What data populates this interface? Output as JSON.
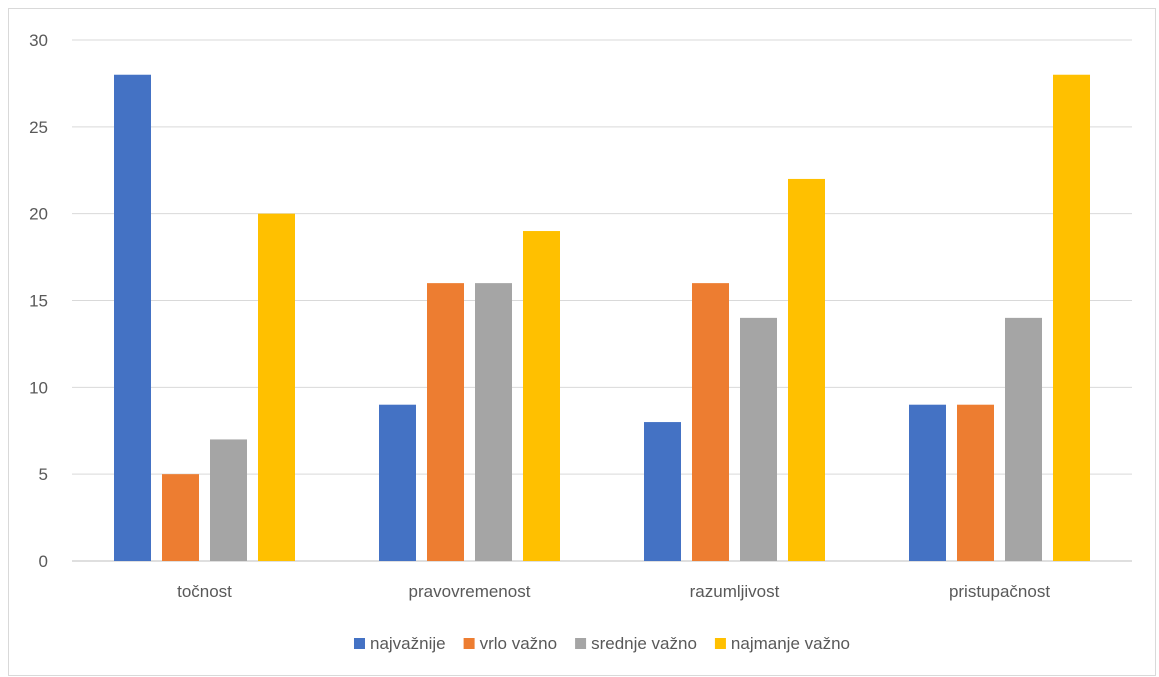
{
  "chart_data": {
    "type": "bar",
    "title": "",
    "xlabel": "",
    "ylabel": "",
    "categories": [
      "točnost",
      "pravovremenost",
      "razumljivost",
      "pristupačnost"
    ],
    "series": [
      {
        "name": "najvažnije",
        "color": "#4472C4",
        "values": [
          28,
          9,
          8,
          9
        ]
      },
      {
        "name": "vrlo važno",
        "color": "#ED7D31",
        "values": [
          5,
          16,
          16,
          9
        ]
      },
      {
        "name": "srednje važno",
        "color": "#A5A5A5",
        "values": [
          7,
          16,
          14,
          14
        ]
      },
      {
        "name": "najmanje važno",
        "color": "#FFC000",
        "values": [
          20,
          19,
          22,
          28
        ]
      }
    ],
    "ylim": [
      0,
      30
    ],
    "yticks": [
      0,
      5,
      10,
      15,
      20,
      25,
      30
    ],
    "grid": true,
    "legend": "bottom"
  }
}
